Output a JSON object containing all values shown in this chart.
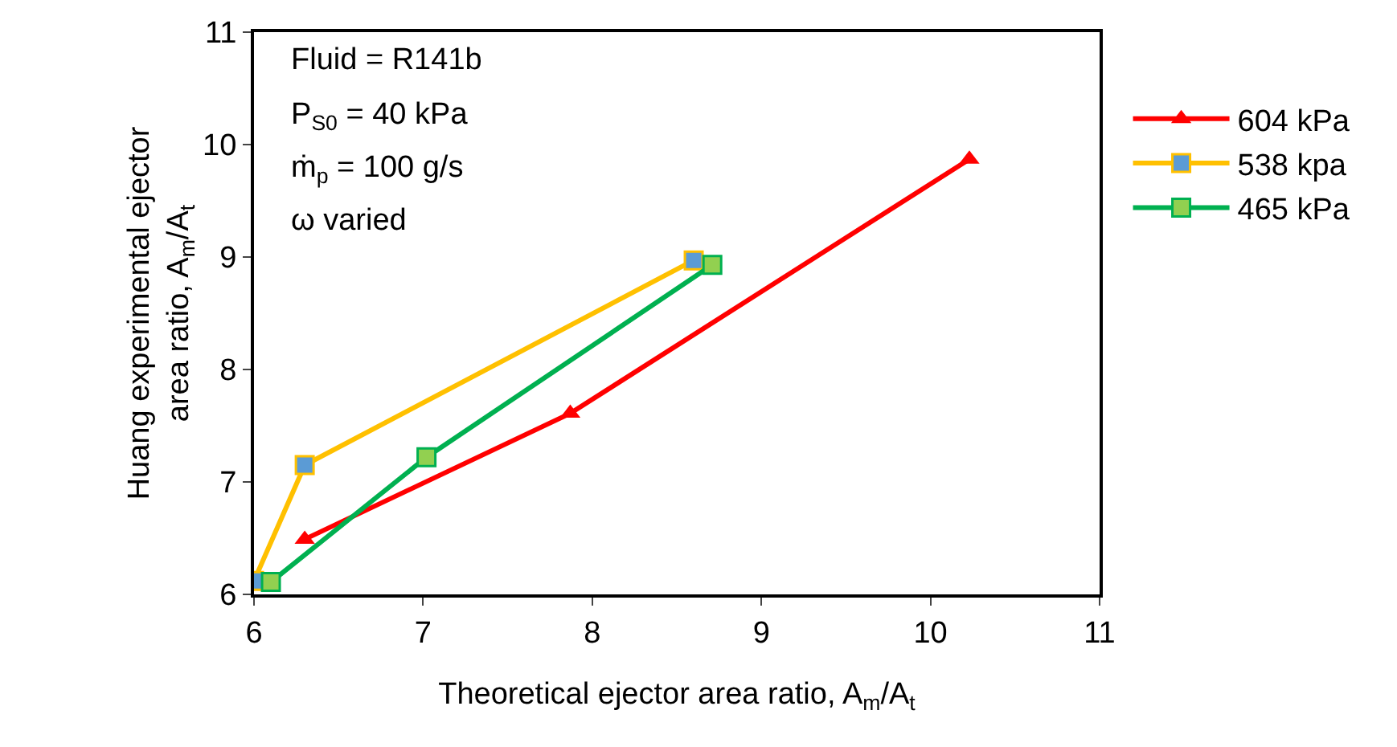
{
  "chart_data": {
    "type": "line",
    "xlabel": "Theoretical ejector area ratio, A$_{m}$/A$_{t}$",
    "ylabel": "Huang experimental ejector\narea ratio, A$_{m}$/A$_{t}$",
    "xlim": [
      6,
      11
    ],
    "xticks": [
      6,
      7,
      8,
      9,
      10,
      11
    ],
    "ylim": [
      6,
      11
    ],
    "yticks": [
      6,
      7,
      8,
      9,
      10,
      11
    ],
    "grid": false,
    "legend": "right",
    "series": [
      {
        "name": "604 kPa",
        "color": "#ff0000",
        "marker": "triangle",
        "x": [
          6.3,
          7.87,
          10.23
        ],
        "values": [
          6.49,
          7.61,
          9.87
        ]
      },
      {
        "name": "538 kpa",
        "color": "#ffc000",
        "marker": "square",
        "x": [
          6.0,
          6.3,
          8.6
        ],
        "values": [
          6.12,
          7.15,
          8.97
        ]
      },
      {
        "name": "465 kPa",
        "color": "#00b050",
        "marker": "square",
        "x": [
          6.1,
          7.02,
          8.71
        ],
        "values": [
          6.11,
          7.22,
          8.93
        ]
      }
    ],
    "annotations": [
      "Fluid = R141b",
      "P$_{S0}$ = 40 kPa",
      "ṁ$_{p}$ = 100 g/s",
      "ω varied"
    ]
  }
}
